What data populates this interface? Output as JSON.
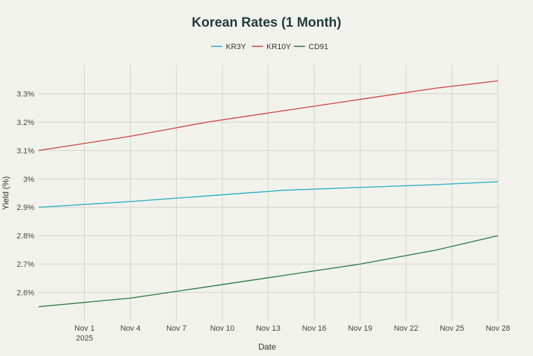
{
  "chart_data": {
    "type": "line",
    "title": "Korean Rates (1 Month)",
    "xlabel": "Date",
    "ylabel": "Yield (%)",
    "x_ticks": [
      "Nov 1",
      "Nov 4",
      "Nov 7",
      "Nov 10",
      "Nov 13",
      "Nov 16",
      "Nov 19",
      "Nov 22",
      "Nov 25",
      "Nov 28"
    ],
    "x_tick_year": "2025",
    "y_ticks": [
      "2.6%",
      "2.7%",
      "2.8%",
      "2.9%",
      "3%",
      "3.1%",
      "3.2%",
      "3.3%"
    ],
    "ylim": [
      2.5,
      3.4
    ],
    "x_range": [
      "2025-10-29",
      "2025-11-28"
    ],
    "legend_position": "top-center",
    "grid": true,
    "series": [
      {
        "name": "KR3Y",
        "color": "#2bafc4",
        "x": [
          "2025-10-29",
          "2025-11-04",
          "2025-11-09",
          "2025-11-14",
          "2025-11-19",
          "2025-11-24",
          "2025-11-28"
        ],
        "values": [
          2.9,
          2.92,
          2.94,
          2.96,
          2.97,
          2.98,
          2.99
        ]
      },
      {
        "name": "KR10Y",
        "color": "#d04a44",
        "x": [
          "2025-10-29",
          "2025-11-04",
          "2025-11-09",
          "2025-11-14",
          "2025-11-19",
          "2025-11-24",
          "2025-11-28"
        ],
        "values": [
          3.1,
          3.15,
          3.2,
          3.24,
          3.28,
          3.32,
          3.345
        ]
      },
      {
        "name": "CD91",
        "color": "#2e7d4a",
        "x": [
          "2025-10-29",
          "2025-11-04",
          "2025-11-09",
          "2025-11-14",
          "2025-11-19",
          "2025-11-24",
          "2025-11-28"
        ],
        "values": [
          2.55,
          2.58,
          2.62,
          2.66,
          2.7,
          2.75,
          2.8
        ]
      }
    ]
  }
}
